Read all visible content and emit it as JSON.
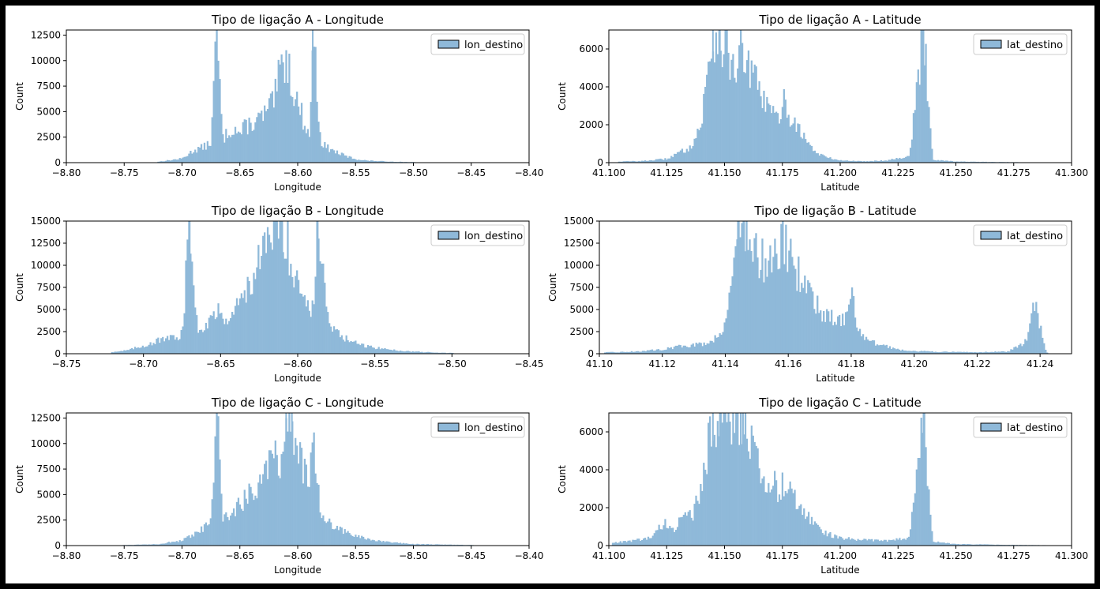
{
  "chart_data": [
    {
      "type": "bar",
      "title": "Tipo de ligação A - Longitude",
      "xlabel": "Longitude",
      "ylabel": "Count",
      "xlim": [
        -8.8,
        -8.4
      ],
      "ylim": [
        0,
        13000
      ],
      "xticks": [
        "−8.80",
        "−8.75",
        "−8.70",
        "−8.65",
        "−8.60",
        "−8.55",
        "−8.50",
        "−8.45",
        "−8.40"
      ],
      "xtick_values": [
        -8.8,
        -8.75,
        -8.7,
        -8.65,
        -8.6,
        -8.55,
        -8.5,
        -8.45,
        -8.4
      ],
      "yticks": [
        "0",
        "2500",
        "5000",
        "7500",
        "10000",
        "12500"
      ],
      "ytick_values": [
        0,
        2500,
        5000,
        7500,
        10000,
        12500
      ],
      "legend": [
        "lon_destino"
      ],
      "legend_position": "upper right",
      "color": "#8fb9d9",
      "series": [
        {
          "name": "lon_destino",
          "x": [
            -8.72,
            -8.7,
            -8.69,
            -8.68,
            -8.675,
            -8.67,
            -8.665,
            -8.66,
            -8.655,
            -8.65,
            -8.645,
            -8.64,
            -8.635,
            -8.63,
            -8.625,
            -8.62,
            -8.615,
            -8.61,
            -8.605,
            -8.6,
            -8.595,
            -8.59,
            -8.587,
            -8.58,
            -8.575,
            -8.57,
            -8.56,
            -8.55,
            -8.54,
            -8.52,
            -8.5
          ],
          "values": [
            100,
            400,
            1200,
            1600,
            2000,
            13000,
            2300,
            3000,
            3400,
            2800,
            3600,
            3800,
            4100,
            4600,
            5200,
            6200,
            9000,
            10500,
            7800,
            5800,
            4200,
            2400,
            13000,
            2000,
            1500,
            1200,
            700,
            350,
            200,
            100,
            50
          ]
        }
      ]
    },
    {
      "type": "bar",
      "title": "Tipo de ligação A - Latitude",
      "xlabel": "Latitude",
      "ylabel": "Count",
      "xlim": [
        41.1,
        41.3
      ],
      "ylim": [
        0,
        7000
      ],
      "xticks": [
        "41.100",
        "41.125",
        "41.150",
        "41.175",
        "41.200",
        "41.225",
        "41.250",
        "41.275",
        "41.300"
      ],
      "xtick_values": [
        41.1,
        41.125,
        41.15,
        41.175,
        41.2,
        41.225,
        41.25,
        41.275,
        41.3
      ],
      "yticks": [
        "0",
        "2000",
        "4000",
        "6000"
      ],
      "ytick_values": [
        0,
        2000,
        4000,
        6000
      ],
      "legend": [
        "lat_destino"
      ],
      "legend_position": "upper right",
      "color": "#8fb9d9",
      "series": [
        {
          "name": "lat_destino",
          "x": [
            41.105,
            41.115,
            41.125,
            41.13,
            41.135,
            41.14,
            41.142,
            41.145,
            41.148,
            41.15,
            41.152,
            41.155,
            41.158,
            41.16,
            41.163,
            41.166,
            41.17,
            41.173,
            41.176,
            41.179,
            41.182,
            41.186,
            41.19,
            41.195,
            41.2,
            41.21,
            41.22,
            41.23,
            41.236,
            41.24,
            41.25,
            41.26,
            41.27,
            41.28,
            41.29
          ],
          "values": [
            60,
            90,
            200,
            500,
            800,
            2000,
            4200,
            6500,
            7000,
            6200,
            5600,
            5200,
            5800,
            5000,
            4300,
            3600,
            2600,
            2300,
            3300,
            2200,
            1900,
            1000,
            500,
            250,
            120,
            70,
            120,
            350,
            7000,
            160,
            60,
            40,
            30,
            20,
            15
          ]
        }
      ]
    },
    {
      "type": "bar",
      "title": "Tipo de ligação B - Longitude",
      "xlabel": "Longitude",
      "ylabel": "Count",
      "xlim": [
        -8.75,
        -8.45
      ],
      "ylim": [
        0,
        15000
      ],
      "xticks": [
        "−8.75",
        "−8.70",
        "−8.65",
        "−8.60",
        "−8.55",
        "−8.50",
        "−8.45"
      ],
      "xtick_values": [
        -8.75,
        -8.7,
        -8.65,
        -8.6,
        -8.55,
        -8.5,
        -8.45
      ],
      "yticks": [
        "0",
        "2500",
        "5000",
        "7500",
        "10000",
        "12500",
        "15000"
      ],
      "ytick_values": [
        0,
        2500,
        5000,
        7500,
        10000,
        12500,
        15000
      ],
      "legend": [
        "lon_destino"
      ],
      "legend_position": "upper right",
      "color": "#8fb9d9",
      "series": [
        {
          "name": "lon_destino",
          "x": [
            -8.72,
            -8.71,
            -8.7,
            -8.69,
            -8.68,
            -8.675,
            -8.67,
            -8.665,
            -8.66,
            -8.655,
            -8.65,
            -8.645,
            -8.64,
            -8.635,
            -8.63,
            -8.625,
            -8.62,
            -8.615,
            -8.61,
            -8.605,
            -8.6,
            -8.595,
            -8.59,
            -8.587,
            -8.58,
            -8.575,
            -8.57,
            -8.56,
            -8.55,
            -8.54,
            -8.53,
            -8.52,
            -8.51,
            -8.5
          ],
          "values": [
            200,
            400,
            900,
            1500,
            1800,
            2200,
            15000,
            2700,
            3400,
            4300,
            4700,
            4100,
            5200,
            6600,
            8800,
            10000,
            12000,
            14500,
            15000,
            11000,
            8600,
            6200,
            4800,
            15000,
            3300,
            2400,
            1800,
            1000,
            700,
            450,
            300,
            200,
            120,
            80
          ]
        }
      ]
    },
    {
      "type": "bar",
      "title": "Tipo de ligação B - Latitude",
      "xlabel": "Latitude",
      "ylabel": "Count",
      "xlim": [
        41.1,
        41.25
      ],
      "ylim": [
        0,
        15000
      ],
      "xticks": [
        "41.10",
        "41.12",
        "41.14",
        "41.16",
        "41.18",
        "41.20",
        "41.22",
        "41.24"
      ],
      "xtick_values": [
        41.1,
        41.12,
        41.14,
        41.16,
        41.18,
        41.2,
        41.22,
        41.24
      ],
      "yticks": [
        "0",
        "2500",
        "5000",
        "7500",
        "10000",
        "12500",
        "15000"
      ],
      "ytick_values": [
        0,
        2500,
        5000,
        7500,
        10000,
        12500,
        15000
      ],
      "legend": [
        "lat_destino"
      ],
      "legend_position": "upper right",
      "color": "#8fb9d9",
      "series": [
        {
          "name": "lat_destino",
          "x": [
            41.102,
            41.108,
            41.114,
            41.12,
            41.125,
            41.13,
            41.134,
            41.138,
            41.14,
            41.142,
            41.144,
            41.146,
            41.148,
            41.15,
            41.152,
            41.154,
            41.156,
            41.158,
            41.16,
            41.162,
            41.164,
            41.166,
            41.168,
            41.17,
            41.172,
            41.174,
            41.176,
            41.178,
            41.18,
            41.182,
            41.185,
            41.19,
            41.195,
            41.2,
            41.21,
            41.22,
            41.23,
            41.236,
            41.238,
            41.242
          ],
          "values": [
            150,
            200,
            300,
            500,
            800,
            1000,
            1200,
            2000,
            4000,
            8000,
            13500,
            15000,
            12000,
            11000,
            10500,
            12000,
            10500,
            13000,
            11000,
            10000,
            8500,
            8000,
            6000,
            5000,
            4500,
            4200,
            3600,
            4000,
            8000,
            2800,
            1500,
            900,
            500,
            300,
            200,
            180,
            250,
            1500,
            6500,
            150
          ]
        }
      ]
    },
    {
      "type": "bar",
      "title": "Tipo de ligação C - Longitude",
      "xlabel": "Longitude",
      "ylabel": "Count",
      "xlim": [
        -8.8,
        -8.4
      ],
      "ylim": [
        0,
        13000
      ],
      "xticks": [
        "−8.80",
        "−8.75",
        "−8.70",
        "−8.65",
        "−8.60",
        "−8.55",
        "−8.50",
        "−8.45",
        "−8.40"
      ],
      "xtick_values": [
        -8.8,
        -8.75,
        -8.7,
        -8.65,
        -8.6,
        -8.55,
        -8.5,
        -8.45,
        -8.4
      ],
      "yticks": [
        "0",
        "2500",
        "5000",
        "7500",
        "10000",
        "12500"
      ],
      "ytick_values": [
        0,
        2500,
        5000,
        7500,
        10000,
        12500
      ],
      "legend": [
        "lon_destino"
      ],
      "legend_position": "upper right",
      "color": "#8fb9d9",
      "series": [
        {
          "name": "lon_destino",
          "x": [
            -8.75,
            -8.72,
            -8.7,
            -8.69,
            -8.68,
            -8.675,
            -8.67,
            -8.665,
            -8.66,
            -8.655,
            -8.65,
            -8.645,
            -8.64,
            -8.635,
            -8.63,
            -8.625,
            -8.62,
            -8.615,
            -8.61,
            -8.605,
            -8.6,
            -8.595,
            -8.59,
            -8.587,
            -8.58,
            -8.575,
            -8.57,
            -8.56,
            -8.55,
            -8.54,
            -8.52,
            -8.5,
            -8.45
          ],
          "values": [
            50,
            150,
            500,
            1000,
            1800,
            2300,
            13000,
            2700,
            3000,
            3500,
            4000,
            4600,
            5500,
            6200,
            6800,
            8800,
            10000,
            7200,
            13000,
            12000,
            9000,
            7500,
            6000,
            10500,
            3300,
            2500,
            1900,
            1400,
            1000,
            600,
            300,
            150,
            50
          ]
        }
      ]
    },
    {
      "type": "bar",
      "title": "Tipo de ligação C - Latitude",
      "xlabel": "Latitude",
      "ylabel": "Count",
      "xlim": [
        41.1,
        41.3
      ],
      "ylim": [
        0,
        7000
      ],
      "xticks": [
        "41.100",
        "41.125",
        "41.150",
        "41.175",
        "41.200",
        "41.225",
        "41.250",
        "41.275",
        "41.300"
      ],
      "xtick_values": [
        41.1,
        41.125,
        41.15,
        41.175,
        41.2,
        41.225,
        41.25,
        41.275,
        41.3
      ],
      "yticks": [
        "0",
        "2000",
        "4000",
        "6000"
      ],
      "ytick_values": [
        0,
        2000,
        4000,
        6000
      ],
      "legend": [
        "lat_destino"
      ],
      "legend_position": "upper right",
      "color": "#8fb9d9",
      "series": [
        {
          "name": "lat_destino",
          "x": [
            41.102,
            41.11,
            41.118,
            41.124,
            41.128,
            41.132,
            41.136,
            41.14,
            41.142,
            41.145,
            41.148,
            41.15,
            41.152,
            41.155,
            41.158,
            41.16,
            41.163,
            41.166,
            41.17,
            41.173,
            41.176,
            41.179,
            41.182,
            41.186,
            41.19,
            41.195,
            41.2,
            41.21,
            41.22,
            41.23,
            41.236,
            41.24,
            41.25,
            41.27,
            41.29
          ],
          "values": [
            150,
            250,
            400,
            1200,
            900,
            1400,
            1600,
            3200,
            4500,
            7000,
            6800,
            7000,
            6000,
            7000,
            6500,
            5600,
            4800,
            4000,
            3400,
            3000,
            3200,
            2800,
            2300,
            1600,
            1000,
            600,
            400,
            300,
            250,
            400,
            7000,
            200,
            80,
            40,
            20
          ]
        }
      ]
    }
  ]
}
